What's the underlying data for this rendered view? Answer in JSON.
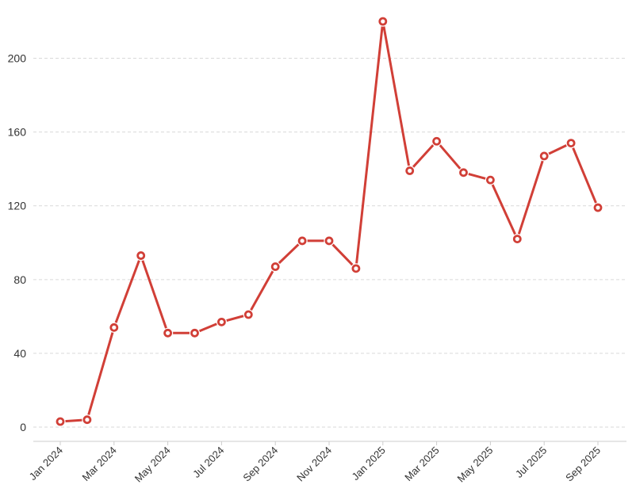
{
  "colors": {
    "line": "#d13f37",
    "gridline": "#d9d9d9",
    "axis": "#cccccc",
    "marker_fill": "#d13f37",
    "marker_center": "#ffffff"
  },
  "chart_data": {
    "type": "line",
    "title": "",
    "xlabel": "",
    "ylabel": "",
    "grid": "horizontal dashed",
    "legend": "none",
    "ylim": [
      0,
      220
    ],
    "y_ticks": [
      "0",
      "40",
      "80",
      "120",
      "160",
      "200"
    ],
    "x_tick_labels": [
      "Jan 2024",
      "Mar 2024",
      "May 2024",
      "Jul 2024",
      "Sep 2024",
      "Nov 2024",
      "Jan 2025",
      "Mar 2025",
      "May 2025",
      "Jul 2025",
      "Sep 2025"
    ],
    "x": [
      "2024-01",
      "2024-02",
      "2024-03",
      "2024-04",
      "2024-05",
      "2024-06",
      "2024-07",
      "2024-08",
      "2024-09",
      "2024-10",
      "2024-11",
      "2024-12",
      "2025-01",
      "2025-02",
      "2025-03",
      "2025-04",
      "2025-05",
      "2025-06",
      "2025-07",
      "2025-08",
      "2025-09"
    ],
    "values": [
      3,
      4,
      54,
      93,
      51,
      51,
      57,
      61,
      87,
      101,
      101,
      86,
      220,
      139,
      155,
      138,
      134,
      102,
      147,
      154,
      119
    ]
  }
}
